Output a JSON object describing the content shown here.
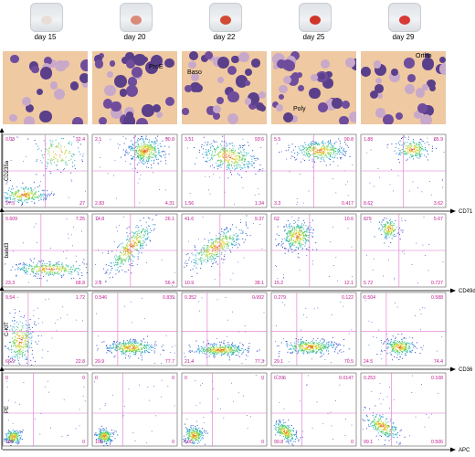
{
  "days": [
    "day 15",
    "day 20",
    "day 22",
    "day 25",
    "day 29"
  ],
  "pellet_colors": [
    "#e9ddd7",
    "#d98a78",
    "#d24a33",
    "#d0362a",
    "#d83a36"
  ],
  "annotations": [
    {
      "col": 1,
      "text": "ProE"
    },
    {
      "col": 2,
      "text": "Baso"
    },
    {
      "col": 3,
      "text": "Poly"
    },
    {
      "col": 4,
      "text": "Ortho"
    }
  ],
  "rows": [
    {
      "ylabel": "CD235a",
      "xlabel": "CD71",
      "q": [
        [
          "0.08",
          "32.4",
          "37.5",
          "27"
        ],
        [
          "2.1",
          "90.8",
          "2.83",
          "4.31"
        ],
        [
          "3.51",
          "93.6",
          "1.56",
          "1.34"
        ],
        [
          "5.5",
          "90.8",
          "3.3",
          "0.417"
        ],
        [
          "1.88",
          "85.9",
          "8.62",
          "3.62"
        ]
      ]
    },
    {
      "ylabel": "band3",
      "xlabel": "CD49d",
      "q": [
        [
          "0.609",
          "7.25",
          "23.3",
          "68.8"
        ],
        [
          "14.8",
          "26.1",
          "2.8",
          "56.4"
        ],
        [
          "41.6",
          "9.37",
          "10.9",
          "38.1"
        ],
        [
          "62",
          "10.6",
          "15.2",
          "12.1"
        ],
        [
          "879",
          "5.67",
          "5.72",
          "0.727"
        ]
      ]
    },
    {
      "ylabel": "C-KIT",
      "xlabel": "CD36",
      "q": [
        [
          "9.54",
          "1.72",
          "66.9",
          "22.8"
        ],
        [
          "0.546",
          "0.839",
          "20.9",
          "77.7"
        ],
        [
          "0.352",
          "0.992",
          "21.4",
          "77.3"
        ],
        [
          "0.279",
          "0.122",
          "29.1",
          "70.5"
        ],
        [
          "0.504",
          "0.588",
          "24.5",
          "74.4"
        ]
      ]
    },
    {
      "ylabel": "PE",
      "xlabel": "APC",
      "q": [
        [
          "0",
          "0",
          "100",
          "0"
        ],
        [
          "0",
          "0",
          "100",
          "0"
        ],
        [
          "0",
          "0",
          "100",
          "0"
        ],
        [
          "0.206",
          "0.0147",
          "99.8",
          "0"
        ],
        [
          "0.253",
          "0.108",
          "99.1",
          "0.506"
        ]
      ]
    }
  ]
}
